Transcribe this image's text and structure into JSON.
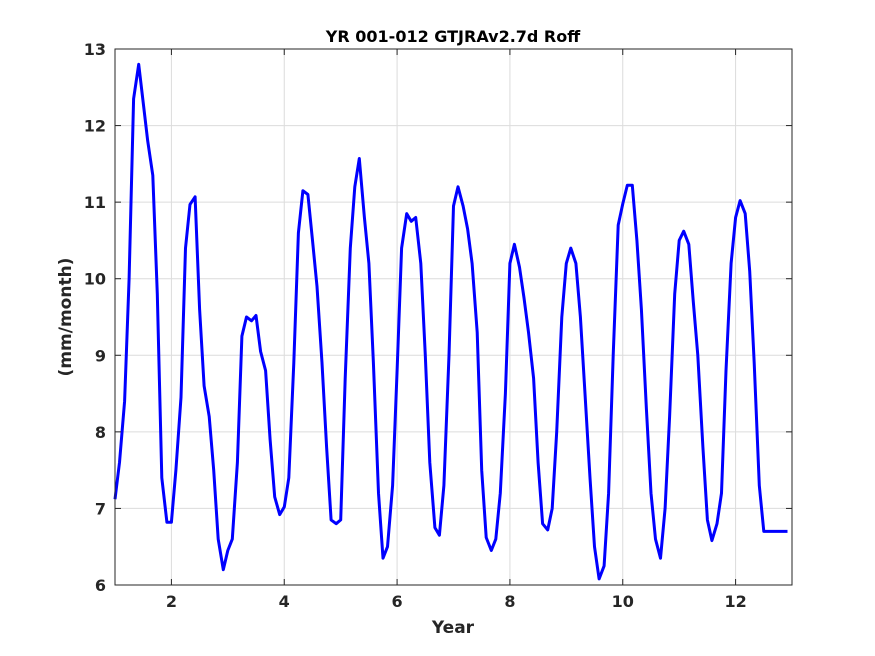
{
  "chart_data": {
    "type": "line",
    "title": "YR 001-012 GTJRAv2.7d Roff",
    "xlabel": "Year",
    "ylabel": "(mm/month)",
    "xlim": [
      1,
      13
    ],
    "ylim": [
      6,
      13
    ],
    "xticks": [
      2,
      4,
      6,
      8,
      10,
      12
    ],
    "yticks": [
      6,
      7,
      8,
      9,
      10,
      11,
      12,
      13
    ],
    "grid": true,
    "line_color": "#0000ff",
    "series": [
      {
        "x": [
          1.0,
          1.08,
          1.17,
          1.25,
          1.33,
          1.42,
          1.5,
          1.58,
          1.67,
          1.75,
          1.83,
          1.92,
          2.0,
          2.08,
          2.17,
          2.25,
          2.33,
          2.42,
          2.5,
          2.58,
          2.67,
          2.75,
          2.83,
          2.92,
          3.0,
          3.08,
          3.17,
          3.25,
          3.33,
          3.42,
          3.5,
          3.58,
          3.67,
          3.75,
          3.83,
          3.92,
          4.0,
          4.08,
          4.17,
          4.25,
          4.33,
          4.42,
          4.5,
          4.58,
          4.67,
          4.75,
          4.83,
          4.92,
          5.0,
          5.08,
          5.17,
          5.25,
          5.33,
          5.42,
          5.5,
          5.58,
          5.67,
          5.75,
          5.83,
          5.92,
          6.0,
          6.08,
          6.17,
          6.25,
          6.33,
          6.42,
          6.5,
          6.58,
          6.67,
          6.75,
          6.83,
          6.92,
          7.0,
          7.08,
          7.17,
          7.25,
          7.33,
          7.42,
          7.5,
          7.58,
          7.67,
          7.75,
          7.83,
          7.92,
          8.0,
          8.08,
          8.17,
          8.25,
          8.33,
          8.42,
          8.5,
          8.58,
          8.67,
          8.75,
          8.83,
          8.92,
          9.0,
          9.08,
          9.17,
          9.25,
          9.33,
          9.42,
          9.5,
          9.58,
          9.67,
          9.75,
          9.83,
          9.92,
          10.0,
          10.08,
          10.17,
          10.25,
          10.33,
          10.42,
          10.5,
          10.58,
          10.67,
          10.75,
          10.83,
          10.92,
          11.0,
          11.08,
          11.17,
          11.25,
          11.33,
          11.42,
          11.5,
          11.58,
          11.67,
          11.75,
          11.83,
          11.92,
          12.0,
          12.08,
          12.17,
          12.25,
          12.33,
          12.42,
          12.5,
          12.58,
          12.67,
          12.75,
          12.83,
          12.92
        ],
        "values": [
          7.12,
          7.6,
          8.4,
          10.0,
          12.35,
          12.8,
          12.3,
          11.8,
          11.35,
          9.8,
          7.4,
          6.82,
          6.82,
          7.5,
          8.45,
          10.4,
          10.97,
          11.07,
          9.6,
          8.6,
          8.2,
          7.5,
          6.6,
          6.2,
          6.45,
          6.6,
          7.6,
          9.25,
          9.5,
          9.45,
          9.52,
          9.05,
          8.8,
          7.9,
          7.15,
          6.92,
          7.02,
          7.4,
          8.9,
          10.6,
          11.15,
          11.1,
          10.5,
          9.9,
          8.9,
          7.8,
          6.85,
          6.8,
          6.85,
          8.7,
          10.4,
          11.2,
          11.57,
          10.8,
          10.2,
          8.9,
          7.2,
          6.35,
          6.5,
          7.3,
          8.8,
          10.4,
          10.85,
          10.75,
          10.8,
          10.2,
          9.0,
          7.6,
          6.75,
          6.65,
          7.3,
          9.0,
          10.95,
          11.2,
          10.95,
          10.65,
          10.2,
          9.3,
          7.5,
          6.62,
          6.45,
          6.6,
          7.2,
          8.5,
          10.2,
          10.45,
          10.15,
          9.75,
          9.3,
          8.7,
          7.6,
          6.8,
          6.72,
          7.0,
          8.0,
          9.5,
          10.2,
          10.4,
          10.2,
          9.5,
          8.5,
          7.4,
          6.5,
          6.08,
          6.25,
          7.2,
          9.0,
          10.7,
          10.98,
          11.22,
          11.22,
          10.5,
          9.6,
          8.3,
          7.2,
          6.6,
          6.35,
          7.0,
          8.2,
          9.8,
          10.5,
          10.62,
          10.45,
          9.7,
          9.0,
          7.8,
          6.85,
          6.58,
          6.8,
          7.2,
          8.8,
          10.2,
          10.8,
          11.02,
          10.85,
          10.1,
          8.9,
          7.3,
          6.7,
          6.7,
          6.7,
          6.7,
          6.7,
          6.7
        ]
      }
    ]
  }
}
